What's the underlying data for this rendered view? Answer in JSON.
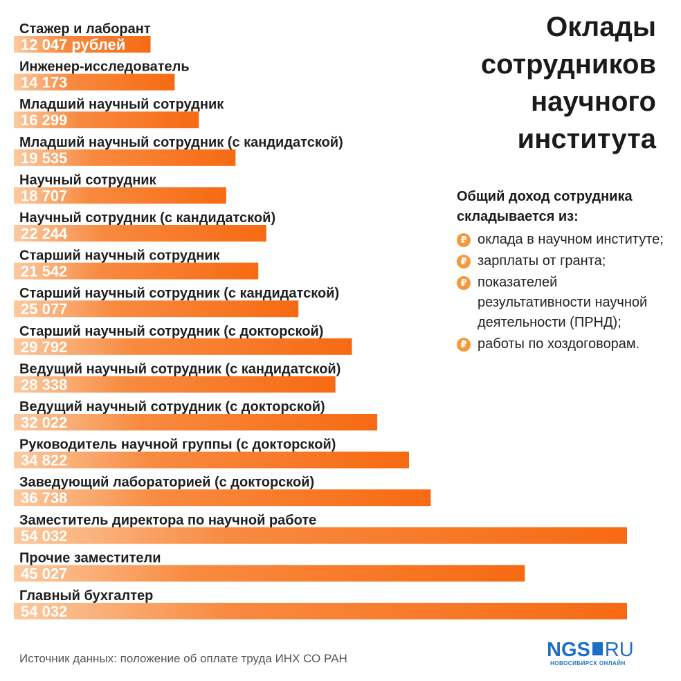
{
  "title": "Оклады\nсотрудников\nнаучного\nинститута",
  "sidebar": {
    "heading": "Общий доход сотрудника складывается из:",
    "items": [
      "оклада в научном институте;",
      "зарплаты от гранта;",
      "показателей результативности научной деятельности (ПРНД);",
      "работы по хоздоговорам."
    ],
    "icon": "ruble-icon"
  },
  "source": "Источник данных: положение об оплате труда ИНХ СО РАН",
  "logo": {
    "main": "NGS",
    "ru": "RU",
    "sub": "НОВОСИБИРСК ОНЛАЙН"
  },
  "colors": {
    "bar_start": "#fbcaa0",
    "bar_end": "#f76a12",
    "value_text": "#ffffff",
    "label_text": "#1f1f1f",
    "icon": "#f39a3c",
    "logo": "#1c6fc4"
  },
  "chart_data": {
    "type": "bar",
    "orientation": "horizontal",
    "categories": [
      "Стажер и лаборант",
      "Инженер-исследователь",
      "Младший научный сотрудник",
      "Младший научный сотрудник (с кандидатской)",
      "Научный сотрудник",
      "Научный сотрудник (с кандидатской)",
      "Старший научный сотрудник",
      "Старший научный сотрудник (с кандидатской)",
      "Старший научный сотрудник (с докторской)",
      "Ведущий научный сотрудник (с кандидатской)",
      "Ведущий научный сотрудник (с докторской)",
      "Руководитель научной группы (с докторской)",
      "Заведующий лабораторией (с докторской)",
      "Заместитель директора по научной работе",
      "Прочие заместители",
      "Главный бухгалтер"
    ],
    "values": [
      12047,
      14173,
      16299,
      19535,
      18707,
      22244,
      21542,
      25077,
      29792,
      28338,
      32022,
      34822,
      36738,
      54032,
      45027,
      54032
    ],
    "value_labels": [
      "12 047 рублей",
      "14 173",
      "16 299",
      "19 535",
      "18 707",
      "22 244",
      "21 542",
      "25 077",
      "29 792",
      "28 338",
      "32 022",
      "34 822",
      "36 738",
      "54 032",
      "45 027",
      "54 032"
    ],
    "xlim": [
      0,
      54032
    ],
    "grid": false,
    "legend": "none"
  }
}
